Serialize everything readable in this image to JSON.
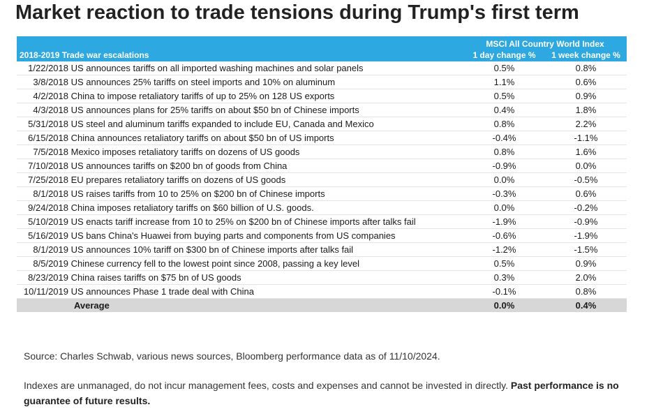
{
  "title": "Market reaction to trade tensions during Trump's first term",
  "chart_data": {
    "type": "table",
    "group_header": "MSCI All Country World Index",
    "columns": [
      "2018-2019 Trade war escalations",
      "1 day change %",
      "1 week change %"
    ],
    "rows": [
      {
        "date": "1/22/2018",
        "event": "US announces tariffs on all imported washing machines and solar panels",
        "day": "0.5%",
        "week": "0.8%"
      },
      {
        "date": "3/8/2018",
        "event": "US announces 25% tariffs on steel imports and 10% on aluminum",
        "day": "1.1%",
        "week": "0.6%"
      },
      {
        "date": "4/2/2018",
        "event": "China to impose retaliatory tariffs of up to 25% on 128 US exports",
        "day": "0.5%",
        "week": "0.9%"
      },
      {
        "date": "4/3/2018",
        "event": "US announces plans for 25% tariffs on about $50 bn of Chinese imports",
        "day": "0.4%",
        "week": "1.8%"
      },
      {
        "date": "5/31/2018",
        "event": "US steel and aluminum tariffs expanded to include EU, Canada and Mexico",
        "day": "0.8%",
        "week": "2.2%"
      },
      {
        "date": "6/15/2018",
        "event": "China announces retaliatory tariffs on about $50 bn of US imports",
        "day": "-0.4%",
        "week": "-1.1%"
      },
      {
        "date": "7/5/2018",
        "event": "Mexico imposes retaliatory tariffs on dozens of US goods",
        "day": "0.8%",
        "week": "1.6%"
      },
      {
        "date": "7/10/2018",
        "event": "US announces tariffs on $200 bn of goods from China",
        "day": "-0.9%",
        "week": "0.0%"
      },
      {
        "date": "7/25/2018",
        "event": "EU prepares retaliatory tariffs on dozens of US goods",
        "day": "0.0%",
        "week": "-0.5%"
      },
      {
        "date": "8/1/2018",
        "event": "US raises tariffs from 10 to 25% on $200 bn of Chinese imports",
        "day": "-0.3%",
        "week": "0.6%"
      },
      {
        "date": "9/24/2018",
        "event": "China imposes retaliatory tariffs on $60 billion of U.S. goods.",
        "day": "0.0%",
        "week": "-0.2%"
      },
      {
        "date": "5/10/2019",
        "event": "US enacts tariff increase from 10 to 25% on $200 bn of Chinese imports after talks fail",
        "day": "-1.9%",
        "week": "-0.9%"
      },
      {
        "date": "5/16/2019",
        "event": "US bans China's Huawei from buying parts and components from US companies",
        "day": "-0.6%",
        "week": "-1.9%"
      },
      {
        "date": "8/1/2019",
        "event": "US announces 10% tariff on $300 bn of Chinese imports after talks fail",
        "day": "-1.2%",
        "week": "-1.5%"
      },
      {
        "date": "8/5/2019",
        "event": "Chinese currency fell to the lowest point since 2008, passing a key level",
        "day": "0.5%",
        "week": "0.9%"
      },
      {
        "date": "8/23/2019",
        "event": "China raises tariffs on $75 bn of US goods",
        "day": "0.3%",
        "week": "2.0%"
      },
      {
        "date": "10/11/2019",
        "event": "US announces Phase 1 trade deal with China",
        "day": "-0.1%",
        "week": "0.8%"
      }
    ],
    "average": {
      "label": "Average",
      "day": "0.0%",
      "week": "0.4%"
    }
  },
  "colors": {
    "header_bg": "#2ea8e0",
    "average_bg": "#d7d7d7",
    "title": "#222222"
  },
  "footnotes": {
    "source": "Source: Charles Schwab, various news sources, Bloomberg performance data as of 11/10/2024.",
    "disclaimer": "Indexes are unmanaged, do not incur management fees, costs and expenses and cannot be invested in directly. ",
    "disclaimer_bold": "Past performance is no guarantee of future results."
  }
}
